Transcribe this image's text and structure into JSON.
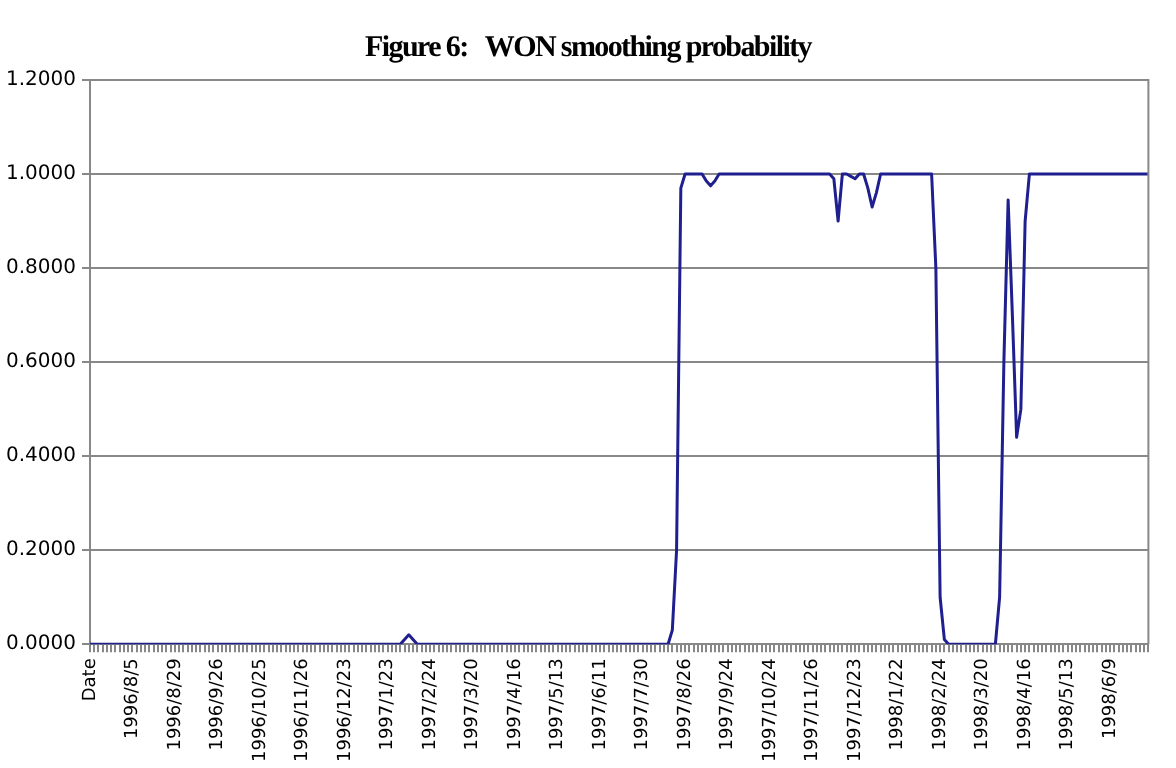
{
  "chart_data": {
    "type": "line",
    "title": "Figure 6:   WON smoothing probability",
    "categories": [
      "Date",
      null,
      null,
      null,
      null,
      null,
      null,
      null,
      null,
      null,
      "1996/8/5",
      null,
      null,
      null,
      null,
      null,
      null,
      null,
      null,
      null,
      "1996/8/29",
      null,
      null,
      null,
      null,
      null,
      null,
      null,
      null,
      null,
      "1996/9/26",
      null,
      null,
      null,
      null,
      null,
      null,
      null,
      null,
      null,
      "1996/10/25",
      null,
      null,
      null,
      null,
      null,
      null,
      null,
      null,
      null,
      "1996/11/26",
      null,
      null,
      null,
      null,
      null,
      null,
      null,
      null,
      null,
      "1996/12/23",
      null,
      null,
      null,
      null,
      null,
      null,
      null,
      null,
      null,
      "1997/1/23",
      null,
      null,
      null,
      null,
      null,
      null,
      null,
      null,
      null,
      "1997/2/24",
      null,
      null,
      null,
      null,
      null,
      null,
      null,
      null,
      null,
      "1997/3/20",
      null,
      null,
      null,
      null,
      null,
      null,
      null,
      null,
      null,
      "1997/4/16",
      null,
      null,
      null,
      null,
      null,
      null,
      null,
      null,
      null,
      "1997/5/13",
      null,
      null,
      null,
      null,
      null,
      null,
      null,
      null,
      null,
      "1997/6/11",
      null,
      null,
      null,
      null,
      null,
      null,
      null,
      null,
      null,
      "1997/7/30",
      null,
      null,
      null,
      null,
      null,
      null,
      null,
      null,
      null,
      "1997/8/26",
      null,
      null,
      null,
      null,
      null,
      null,
      null,
      null,
      null,
      "1997/9/24",
      null,
      null,
      null,
      null,
      null,
      null,
      null,
      null,
      null,
      "1997/10/24",
      null,
      null,
      null,
      null,
      null,
      null,
      null,
      null,
      null,
      "1997/11/26",
      null,
      null,
      null,
      null,
      null,
      null,
      null,
      null,
      null,
      "1997/12/23",
      null,
      null,
      null,
      null,
      null,
      null,
      null,
      null,
      null,
      "1998/1/22",
      null,
      null,
      null,
      null,
      null,
      null,
      null,
      null,
      null,
      "1998/2/24",
      null,
      null,
      null,
      null,
      null,
      null,
      null,
      null,
      null,
      "1998/3/20",
      null,
      null,
      null,
      null,
      null,
      null,
      null,
      null,
      null,
      "1998/4/16",
      null,
      null,
      null,
      null,
      null,
      null,
      null,
      null,
      null,
      "1998/5/13",
      null,
      null,
      null,
      null,
      null,
      null,
      null,
      null,
      null,
      "1998/6/9",
      null,
      null,
      null,
      null,
      null,
      null,
      null,
      null,
      null
    ],
    "series": [
      {
        "color": "#1f1f8f",
        "values": [
          0,
          0,
          0,
          0,
          0,
          0,
          0,
          0,
          0,
          0,
          0,
          0,
          0,
          0,
          0,
          0,
          0,
          0,
          0,
          0,
          0,
          0,
          0,
          0,
          0,
          0,
          0,
          0,
          0,
          0,
          0,
          0,
          0,
          0,
          0,
          0,
          0,
          0,
          0,
          0,
          0,
          0,
          0,
          0,
          0,
          0,
          0,
          0,
          0,
          0,
          0,
          0,
          0,
          0,
          0,
          0,
          0,
          0,
          0,
          0,
          0,
          0,
          0,
          0,
          0,
          0,
          0,
          0,
          0,
          0,
          0,
          0,
          0,
          0,
          0.01,
          0.02,
          0.01,
          0,
          0,
          0,
          0,
          0,
          0,
          0,
          0,
          0,
          0,
          0,
          0,
          0,
          0,
          0,
          0,
          0,
          0,
          0,
          0,
          0,
          0,
          0,
          0,
          0,
          0,
          0,
          0,
          0,
          0,
          0,
          0,
          0,
          0,
          0,
          0,
          0,
          0,
          0,
          0,
          0,
          0,
          0,
          0,
          0,
          0,
          0,
          0,
          0,
          0,
          0,
          0,
          0,
          0,
          0,
          0,
          0,
          0,
          0,
          0,
          0.03,
          0.2,
          0.97,
          1,
          1,
          1,
          1,
          1,
          0.985,
          0.975,
          0.985,
          1,
          1,
          1,
          1,
          1,
          1,
          1,
          1,
          1,
          1,
          1,
          1,
          1,
          1,
          1,
          1,
          1,
          1,
          1,
          1,
          1,
          1,
          1,
          1,
          1,
          1,
          1,
          0.99,
          0.9,
          1,
          1,
          0.995,
          0.99,
          1,
          1,
          0.97,
          0.93,
          0.96,
          1,
          1,
          1,
          1,
          1,
          1,
          1,
          1,
          1,
          1,
          1,
          1,
          1,
          0.8,
          0.1,
          0.01,
          0,
          0,
          0,
          0,
          0,
          0,
          0,
          0,
          0,
          0,
          0,
          0,
          0.1,
          0.6,
          0.945,
          0.7,
          0.44,
          0.5,
          0.9,
          1,
          1,
          1,
          1,
          1,
          1,
          1,
          1,
          1,
          1,
          1,
          1,
          1,
          1,
          1,
          1,
          1,
          1,
          1,
          1,
          1,
          1,
          1,
          1,
          1,
          1,
          1,
          1,
          1
        ]
      }
    ],
    "ylim": [
      0,
      1.2
    ],
    "yticks": [
      {
        "value": 0,
        "label": "0.0000"
      },
      {
        "value": 0.2,
        "label": "0.2000"
      },
      {
        "value": 0.4,
        "label": "0.4000"
      },
      {
        "value": 0.6,
        "label": "0.6000"
      },
      {
        "value": 0.8,
        "label": "0.8000"
      },
      {
        "value": 1,
        "label": "1.0000"
      },
      {
        "value": 1.2,
        "label": "1.2000"
      }
    ],
    "grid": "y",
    "legend": false,
    "marker": "none",
    "line_style": "solid"
  }
}
